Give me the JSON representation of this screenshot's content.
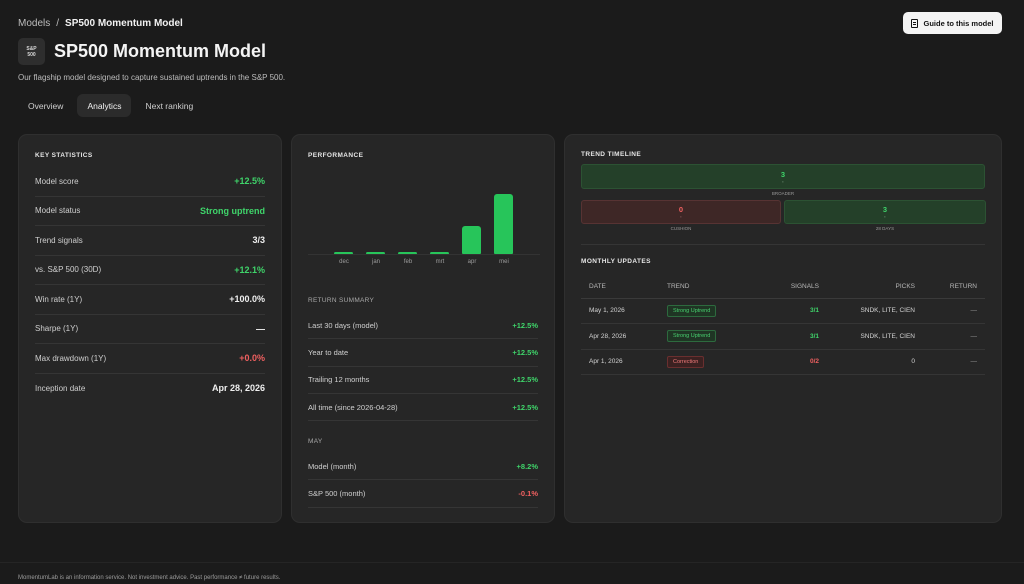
{
  "breadcrumb": {
    "root": "Models",
    "sep": "/",
    "current": "SP500 Momentum Model"
  },
  "guide_button": "Guide to this model",
  "logo": {
    "line1": "S&P",
    "line2": "500"
  },
  "title": "SP500 Momentum Model",
  "subtitle": "Our flagship model designed to capture sustained uptrends in the S&P 500.",
  "tabs": [
    "Overview",
    "Analytics",
    "Next ranking"
  ],
  "active_tab": "Analytics",
  "key_statistics": {
    "heading": "KEY STATISTICS",
    "rows": [
      {
        "label": "Model score",
        "value": "+12.5%",
        "tone": "green"
      },
      {
        "label": "Model status",
        "value": "Strong uptrend",
        "tone": "green"
      },
      {
        "label": "Trend signals",
        "value": "3/3",
        "tone": "white"
      },
      {
        "label": "vs. S&P 500 (30D)",
        "value": "+12.1%",
        "tone": "green"
      },
      {
        "label": "Win rate (1Y)",
        "value": "+100.0%",
        "tone": "white"
      },
      {
        "label": "Sharpe (1Y)",
        "value": "—",
        "tone": "white"
      },
      {
        "label": "Max drawdown (1Y)",
        "value": "+0.0%",
        "tone": "red"
      },
      {
        "label": "Inception date",
        "value": "Apr 28, 2026",
        "tone": "white"
      }
    ]
  },
  "performance": {
    "heading": "PERFORMANCE",
    "return_summary_label": "RETURN SUMMARY",
    "return_summary": [
      {
        "label": "Last 30 days (model)",
        "value": "+12.5%"
      },
      {
        "label": "Year to date",
        "value": "+12.5%"
      },
      {
        "label": "Trailing 12 months",
        "value": "+12.5%"
      },
      {
        "label": "All time (since 2026-04-28)",
        "value": "+12.5%"
      }
    ],
    "month_label": "MAY",
    "month_rows": [
      {
        "label": "Model (month)",
        "value": "+8.2%",
        "tone": "green"
      },
      {
        "label": "S&P 500 (month)",
        "value": "-0.1%",
        "tone": "red"
      }
    ]
  },
  "chart_data": {
    "type": "bar",
    "categories": [
      "dec",
      "jan",
      "feb",
      "mrt",
      "apr",
      "mei"
    ],
    "values": [
      0.3,
      0.3,
      0.3,
      0.3,
      3.8,
      8.2
    ],
    "ylim": [
      0,
      8.5
    ],
    "color": "#27c55a",
    "grid": false
  },
  "trend_timeline": {
    "heading": "TREND TIMELINE",
    "top": {
      "value": "3",
      "caption": "BROADER"
    },
    "left": {
      "value": "0",
      "caption": "CUSHION"
    },
    "right": {
      "value": "3",
      "caption": "28 DAYS"
    }
  },
  "monthly_updates": {
    "heading": "MONTHLY UPDATES",
    "columns": [
      "DATE",
      "TREND",
      "SIGNALS",
      "PICKS",
      "RETURN"
    ],
    "rows": [
      {
        "date": "May 1, 2026",
        "trend": "Strong Uptrend",
        "trend_tone": "g",
        "signals": "3/1",
        "signals_tone": "green",
        "picks": "SNDK, LITE, CIEN",
        "ret": "—"
      },
      {
        "date": "Apr 28, 2026",
        "trend": "Strong Uptrend",
        "trend_tone": "g",
        "signals": "3/1",
        "signals_tone": "green",
        "picks": "SNDK, LITE, CIEN",
        "ret": "—"
      },
      {
        "date": "Apr 1, 2026",
        "trend": "Correction",
        "trend_tone": "r",
        "signals": "0/2",
        "signals_tone": "red",
        "picks": "0",
        "ret": "—"
      }
    ]
  },
  "footer": "MomentumLab is an information service. Not investment advice. Past performance ≠ future results."
}
